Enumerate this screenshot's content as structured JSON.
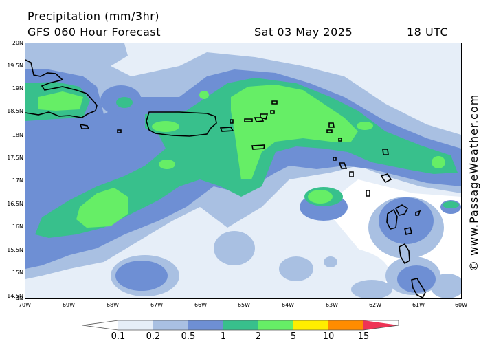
{
  "header": {
    "title": "Precipitation (mm/3hr)",
    "subtitle": "GFS 060 Hour Forecast",
    "date": "Sat 03 May 2025",
    "time": "18 UTC"
  },
  "credit": "© www.PassageWeather.com",
  "axes": {
    "lat_labels": [
      "20N",
      "19.5N",
      "19N",
      "18.5N",
      "18N",
      "17.5N",
      "17N",
      "16.5N",
      "16N",
      "15.5N",
      "15N",
      "14.5N",
      "14N"
    ],
    "lon_labels": [
      "70W",
      "69W",
      "68W",
      "67W",
      "66W",
      "65W",
      "64W",
      "63W",
      "62W",
      "61W",
      "60W"
    ],
    "lat_range": [
      14,
      20
    ],
    "lon_range": [
      -70,
      -60
    ]
  },
  "legend": {
    "units": "mm/3hr",
    "levels": [
      "0.1",
      "0.2",
      "0.5",
      "1",
      "2",
      "5",
      "10",
      "15"
    ],
    "colors": [
      "#ffffff",
      "#e6eef8",
      "#a9c0e2",
      "#6e8fd4",
      "#38c08c",
      "#66ee66",
      "#ffee00",
      "#ff8c00",
      "#ee3355"
    ]
  },
  "map_layers": {
    "l1": "#e6eef8",
    "l2": "#a9c0e2",
    "l3": "#6e8fd4",
    "l4": "#38c08c",
    "l5": "#66ee66",
    "land_outline": "#000000"
  }
}
